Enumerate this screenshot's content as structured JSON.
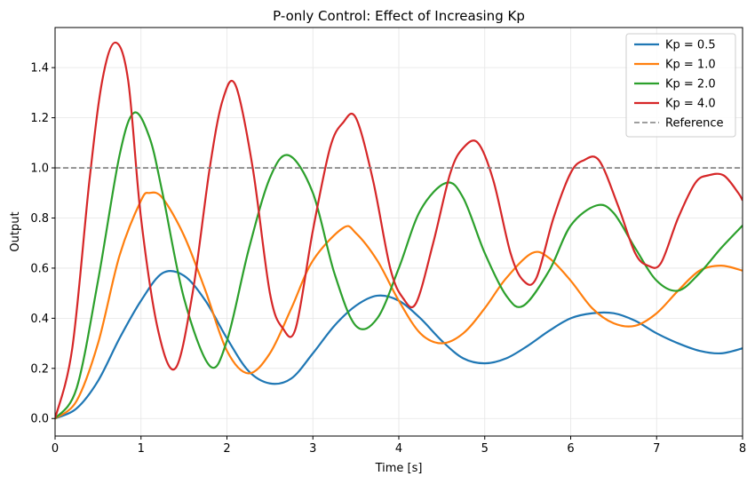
{
  "chart_data": {
    "type": "line",
    "title": "P-only Control: Effect of Increasing Kp",
    "xlabel": "Time [s]",
    "ylabel": "Output",
    "xlim": [
      0,
      8
    ],
    "ylim": [
      -0.07,
      1.56
    ],
    "xticks": [
      0,
      1,
      2,
      3,
      4,
      5,
      6,
      7,
      8
    ],
    "yticks": [
      0.0,
      0.2,
      0.4,
      0.6,
      0.8,
      1.0,
      1.2,
      1.4
    ],
    "xtick_labels": [
      "0",
      "1",
      "2",
      "3",
      "4",
      "5",
      "6",
      "7",
      "8"
    ],
    "ytick_labels": [
      "0.0",
      "0.2",
      "0.4",
      "0.6",
      "0.8",
      "1.0",
      "1.2",
      "1.4"
    ],
    "grid": true,
    "legend_position": "top-right",
    "series": [
      {
        "name": "Kp = 0.5",
        "color": "#1f77b4",
        "x": [
          0,
          0.25,
          0.5,
          0.75,
          1.0,
          1.25,
          1.5,
          1.75,
          2.0,
          2.25,
          2.5,
          2.75,
          3.0,
          3.25,
          3.5,
          3.75,
          4.0,
          4.25,
          4.5,
          4.75,
          5.0,
          5.25,
          5.5,
          5.75,
          6.0,
          6.25,
          6.5,
          6.75,
          7.0,
          7.25,
          7.5,
          7.75,
          8.0
        ],
        "y": [
          0,
          0.04,
          0.15,
          0.32,
          0.47,
          0.58,
          0.57,
          0.47,
          0.32,
          0.19,
          0.14,
          0.16,
          0.26,
          0.37,
          0.45,
          0.49,
          0.47,
          0.4,
          0.31,
          0.24,
          0.22,
          0.24,
          0.29,
          0.35,
          0.4,
          0.42,
          0.42,
          0.39,
          0.34,
          0.3,
          0.27,
          0.26,
          0.28
        ]
      },
      {
        "name": "Kp = 1.0",
        "color": "#ff7f0e",
        "x": [
          0,
          0.25,
          0.5,
          0.75,
          1.0,
          1.1,
          1.25,
          1.5,
          1.75,
          2.0,
          2.25,
          2.5,
          2.75,
          3.0,
          3.35,
          3.5,
          3.75,
          4.0,
          4.25,
          4.5,
          4.75,
          5.0,
          5.25,
          5.55,
          5.75,
          6.0,
          6.25,
          6.5,
          6.75,
          7.0,
          7.25,
          7.5,
          7.75,
          8.0
        ],
        "y": [
          0,
          0.07,
          0.3,
          0.65,
          0.87,
          0.9,
          0.88,
          0.73,
          0.51,
          0.27,
          0.18,
          0.26,
          0.44,
          0.63,
          0.76,
          0.74,
          0.63,
          0.47,
          0.34,
          0.3,
          0.34,
          0.44,
          0.56,
          0.66,
          0.64,
          0.55,
          0.44,
          0.38,
          0.37,
          0.42,
          0.51,
          0.59,
          0.61,
          0.59
        ]
      },
      {
        "name": "Kp = 2.0",
        "color": "#2ca02c",
        "x": [
          0,
          0.25,
          0.5,
          0.75,
          0.92,
          1.1,
          1.25,
          1.5,
          1.8,
          2.0,
          2.25,
          2.5,
          2.72,
          3.0,
          3.25,
          3.5,
          3.75,
          4.0,
          4.25,
          4.55,
          4.75,
          5.0,
          5.25,
          5.45,
          5.75,
          6.0,
          6.3,
          6.5,
          6.75,
          7.0,
          7.25,
          7.5,
          7.75,
          8.0
        ],
        "y": [
          0,
          0.12,
          0.55,
          1.05,
          1.22,
          1.12,
          0.9,
          0.48,
          0.21,
          0.31,
          0.67,
          0.96,
          1.05,
          0.9,
          0.58,
          0.37,
          0.4,
          0.6,
          0.83,
          0.94,
          0.88,
          0.66,
          0.49,
          0.45,
          0.59,
          0.77,
          0.85,
          0.82,
          0.68,
          0.55,
          0.51,
          0.58,
          0.68,
          0.77
        ]
      },
      {
        "name": "Kp = 4.0",
        "color": "#d62728",
        "x": [
          0,
          0.2,
          0.4,
          0.55,
          0.7,
          0.85,
          1.0,
          1.2,
          1.4,
          1.6,
          1.8,
          1.95,
          2.1,
          2.3,
          2.5,
          2.65,
          2.8,
          3.0,
          3.2,
          3.35,
          3.5,
          3.7,
          3.9,
          4.05,
          4.2,
          4.4,
          4.6,
          4.75,
          4.92,
          5.1,
          5.3,
          5.45,
          5.6,
          5.8,
          6.0,
          6.15,
          6.33,
          6.55,
          6.75,
          6.9,
          7.05,
          7.25,
          7.45,
          7.6,
          7.78,
          7.95,
          8.0
        ],
        "y": [
          0,
          0.28,
          0.95,
          1.35,
          1.5,
          1.35,
          0.8,
          0.35,
          0.2,
          0.5,
          1.0,
          1.27,
          1.33,
          1.0,
          0.5,
          0.36,
          0.36,
          0.75,
          1.08,
          1.18,
          1.2,
          0.95,
          0.6,
          0.48,
          0.46,
          0.7,
          0.98,
          1.08,
          1.1,
          0.95,
          0.66,
          0.55,
          0.56,
          0.8,
          0.98,
          1.03,
          1.03,
          0.85,
          0.66,
          0.61,
          0.62,
          0.8,
          0.94,
          0.97,
          0.97,
          0.9,
          0.87
        ]
      },
      {
        "name": "Reference",
        "color": "#7f7f7f",
        "dashed": true,
        "x": [
          0,
          8
        ],
        "y": [
          1.0,
          1.0
        ]
      }
    ]
  }
}
